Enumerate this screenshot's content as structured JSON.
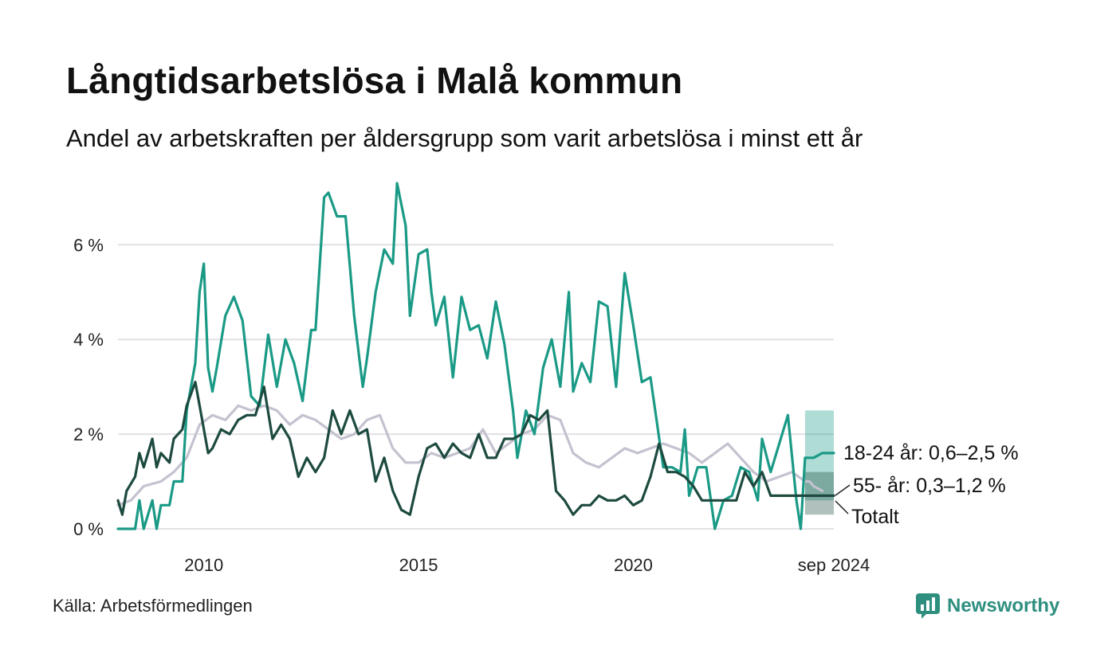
{
  "title": "Långtidsarbetslösa i Malå kommun",
  "subtitle": "Andel av arbetskraften per åldersgrupp som varit arbetslösa i minst ett år",
  "source": "Källa: Arbetsförmedlingen",
  "brand": {
    "name": "Newsworthy",
    "icon": "bar-chart-logo-icon",
    "color": "#2e8f7f"
  },
  "chart_data": {
    "type": "line",
    "xlabel": "",
    "ylabel": "",
    "xlim": [
      2008.0,
      2024.67
    ],
    "ylim": [
      0,
      7.3
    ],
    "y_ticks": [
      0,
      2,
      4,
      6
    ],
    "y_tick_labels": [
      "0 %",
      "2 %",
      "4 %",
      "6 %"
    ],
    "x_ticks": [
      2010,
      2015,
      2020,
      2024.67
    ],
    "x_tick_labels": [
      "2010",
      "2015",
      "2020",
      "sep 2024"
    ],
    "grid": true,
    "legend": "direct labels at line ends (right)",
    "series": [
      {
        "name": "Totalt",
        "end_label": "Totalt",
        "color": "#c4c2cf",
        "x": [
          2008.0,
          2008.3,
          2008.6,
          2009.0,
          2009.3,
          2009.6,
          2009.9,
          2010.2,
          2010.5,
          2010.8,
          2011.1,
          2011.4,
          2011.7,
          2012.0,
          2012.3,
          2012.6,
          2012.9,
          2013.2,
          2013.5,
          2013.8,
          2014.1,
          2014.4,
          2014.7,
          2015.0,
          2015.3,
          2015.6,
          2015.9,
          2016.2,
          2016.5,
          2016.8,
          2017.1,
          2017.4,
          2017.7,
          2018.0,
          2018.3,
          2018.6,
          2018.9,
          2019.2,
          2019.5,
          2019.8,
          2020.1,
          2020.4,
          2020.7,
          2021.0,
          2021.3,
          2021.6,
          2021.9,
          2022.2,
          2022.5,
          2022.8,
          2023.1,
          2023.4,
          2023.7,
          2024.0,
          2024.1,
          2024.2,
          2024.4
        ],
        "y": [
          0.5,
          0.6,
          0.9,
          1.0,
          1.2,
          1.5,
          2.2,
          2.4,
          2.3,
          2.6,
          2.5,
          2.6,
          2.5,
          2.2,
          2.4,
          2.3,
          2.1,
          1.9,
          2.0,
          2.3,
          2.4,
          1.7,
          1.4,
          1.4,
          1.6,
          1.5,
          1.6,
          1.7,
          2.1,
          1.6,
          1.8,
          2.0,
          2.1,
          2.4,
          2.3,
          1.6,
          1.4,
          1.3,
          1.5,
          1.7,
          1.6,
          1.7,
          1.8,
          1.7,
          1.6,
          1.4,
          1.6,
          1.8,
          1.5,
          1.2,
          1.0,
          1.1,
          1.2,
          1.0,
          1.0,
          0.9,
          0.8
        ]
      },
      {
        "name": "18-24 år",
        "end_label": "18-24 år: 0,6–2,5 %",
        "color": "#1a9a86",
        "band_color": "#1a9a86",
        "band": {
          "x": [
            2024.0,
            2024.67
          ],
          "lower": 0.6,
          "upper": 2.5
        },
        "x": [
          2008.0,
          2008.4,
          2008.5,
          2008.6,
          2008.8,
          2008.9,
          2009.0,
          2009.2,
          2009.3,
          2009.5,
          2009.6,
          2009.8,
          2009.9,
          2010.0,
          2010.1,
          2010.2,
          2010.3,
          2010.5,
          2010.7,
          2010.9,
          2011.1,
          2011.3,
          2011.5,
          2011.7,
          2011.9,
          2012.1,
          2012.3,
          2012.5,
          2012.6,
          2012.8,
          2012.9,
          2013.1,
          2013.3,
          2013.5,
          2013.7,
          2013.8,
          2014.0,
          2014.2,
          2014.4,
          2014.5,
          2014.7,
          2014.8,
          2015.0,
          2015.2,
          2015.3,
          2015.4,
          2015.6,
          2015.8,
          2016.0,
          2016.2,
          2016.4,
          2016.6,
          2016.8,
          2017.0,
          2017.2,
          2017.3,
          2017.5,
          2017.7,
          2017.9,
          2018.1,
          2018.3,
          2018.5,
          2018.6,
          2018.8,
          2019.0,
          2019.2,
          2019.4,
          2019.6,
          2019.8,
          2020.0,
          2020.2,
          2020.4,
          2020.7,
          2020.9,
          2021.1,
          2021.2,
          2021.3,
          2021.5,
          2021.7,
          2021.9,
          2022.1,
          2022.3,
          2022.5,
          2022.7,
          2022.9,
          2023.0,
          2023.2,
          2023.4,
          2023.6,
          2023.8,
          2023.9,
          2024.0,
          2024.2,
          2024.4,
          2024.67
        ],
        "y": [
          0.0,
          0.0,
          0.6,
          0.0,
          0.6,
          0.0,
          0.5,
          0.5,
          1.0,
          1.0,
          2.5,
          3.5,
          5.0,
          5.6,
          3.4,
          2.9,
          3.4,
          4.5,
          4.9,
          4.4,
          2.8,
          2.6,
          4.1,
          3.0,
          4.0,
          3.5,
          2.7,
          4.2,
          4.2,
          7.0,
          7.1,
          6.6,
          6.6,
          4.5,
          3.0,
          3.6,
          5.0,
          5.9,
          5.6,
          7.3,
          6.4,
          4.5,
          5.8,
          5.9,
          5.0,
          4.3,
          4.9,
          3.2,
          4.9,
          4.2,
          4.3,
          3.6,
          4.8,
          3.9,
          2.5,
          1.5,
          2.5,
          2.0,
          3.4,
          4.0,
          3.0,
          5.0,
          2.9,
          3.5,
          3.1,
          4.8,
          4.7,
          3.0,
          5.4,
          4.3,
          3.1,
          3.2,
          1.3,
          1.3,
          1.2,
          2.1,
          0.7,
          1.3,
          1.3,
          0.0,
          0.6,
          0.7,
          1.3,
          1.2,
          0.6,
          1.9,
          1.2,
          1.8,
          2.4,
          0.6,
          0.0,
          1.5,
          1.5,
          1.6,
          1.6
        ]
      },
      {
        "name": "55- år",
        "end_label": "55- år: 0,3–1,2 %",
        "color": "#1d4a3f",
        "band_color": "#1d4a3f",
        "band": {
          "x": [
            2024.0,
            2024.67
          ],
          "lower": 0.3,
          "upper": 1.2
        },
        "x": [
          2008.0,
          2008.1,
          2008.2,
          2008.4,
          2008.5,
          2008.6,
          2008.8,
          2008.9,
          2009.0,
          2009.2,
          2009.3,
          2009.5,
          2009.6,
          2009.8,
          2009.9,
          2010.1,
          2010.2,
          2010.4,
          2010.6,
          2010.8,
          2011.0,
          2011.2,
          2011.4,
          2011.6,
          2011.8,
          2012.0,
          2012.2,
          2012.4,
          2012.6,
          2012.8,
          2013.0,
          2013.2,
          2013.4,
          2013.6,
          2013.8,
          2014.0,
          2014.2,
          2014.4,
          2014.6,
          2014.8,
          2015.0,
          2015.2,
          2015.4,
          2015.6,
          2015.8,
          2016.0,
          2016.2,
          2016.4,
          2016.6,
          2016.8,
          2017.0,
          2017.2,
          2017.4,
          2017.6,
          2017.8,
          2018.0,
          2018.2,
          2018.4,
          2018.6,
          2018.8,
          2019.0,
          2019.2,
          2019.4,
          2019.6,
          2019.8,
          2020.0,
          2020.2,
          2020.4,
          2020.6,
          2020.8,
          2021.0,
          2021.2,
          2021.4,
          2021.6,
          2021.8,
          2022.0,
          2022.2,
          2022.4,
          2022.6,
          2022.8,
          2023.0,
          2023.2,
          2023.4,
          2023.6,
          2023.8,
          2023.9,
          2024.0,
          2024.2,
          2024.4,
          2024.67
        ],
        "y": [
          0.6,
          0.3,
          0.8,
          1.1,
          1.6,
          1.3,
          1.9,
          1.3,
          1.6,
          1.4,
          1.9,
          2.1,
          2.6,
          3.1,
          2.6,
          1.6,
          1.7,
          2.1,
          2.0,
          2.3,
          2.4,
          2.4,
          3.0,
          1.9,
          2.2,
          1.9,
          1.1,
          1.5,
          1.2,
          1.5,
          2.5,
          2.0,
          2.5,
          2.0,
          2.1,
          1.0,
          1.5,
          0.8,
          0.4,
          0.3,
          1.1,
          1.7,
          1.8,
          1.5,
          1.8,
          1.6,
          1.5,
          2.0,
          1.5,
          1.5,
          1.9,
          1.9,
          2.0,
          2.4,
          2.3,
          2.5,
          0.8,
          0.6,
          0.3,
          0.5,
          0.5,
          0.7,
          0.6,
          0.6,
          0.7,
          0.5,
          0.6,
          1.1,
          1.8,
          1.2,
          1.2,
          1.1,
          0.9,
          0.6,
          0.6,
          0.6,
          0.6,
          0.6,
          1.2,
          0.9,
          1.2,
          0.7,
          0.7,
          0.7,
          0.7,
          0.7,
          0.7,
          0.7,
          0.7,
          0.7
        ]
      }
    ]
  }
}
